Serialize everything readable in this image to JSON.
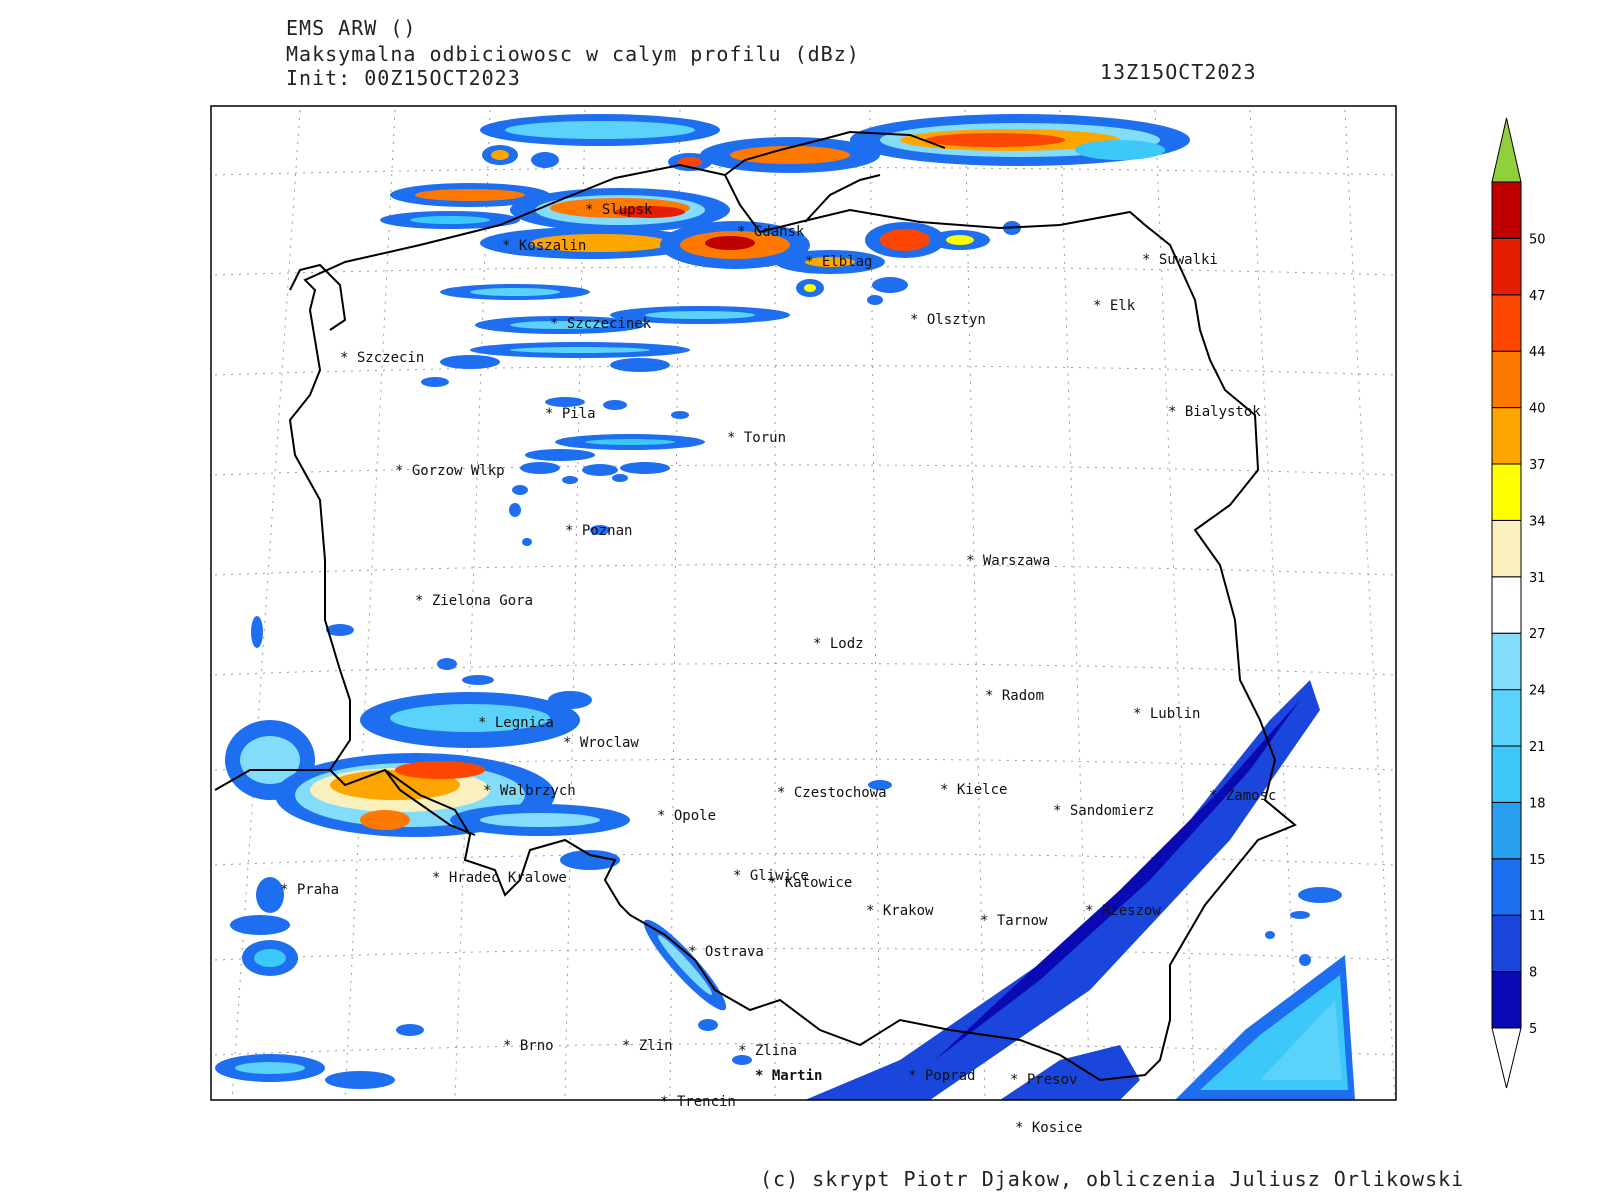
{
  "header": {
    "model": "EMS ARW ()",
    "field": "Maksymalna odbiciowosc w calym profilu (dBz)",
    "init": "Init: 00Z15OCT2023",
    "valid_time": "13Z15OCT2023"
  },
  "credit": "(c) skrypt Piotr Djakow, obliczenia Juliusz Orlikowski",
  "colorbar": {
    "levels": [
      "5",
      "8",
      "11",
      "15",
      "18",
      "21",
      "24",
      "27",
      "31",
      "34",
      "37",
      "40",
      "44",
      "47",
      "50"
    ],
    "colors": [
      "#0a0ab4",
      "#1a46dc",
      "#1e6ef0",
      "#28a0f0",
      "#3cc8f8",
      "#5ad2fa",
      "#82dcfa",
      "#ffffff",
      "#faf0be",
      "#ffff00",
      "#ffa500",
      "#ff7800",
      "#ff4600",
      "#e61e00",
      "#c00000"
    ],
    "over_color": "#8fd03c"
  },
  "cities": [
    {
      "name": "Slupsk"
    },
    {
      "name": "Gdansk"
    },
    {
      "name": "Koszalin"
    },
    {
      "name": "Elblag"
    },
    {
      "name": "Suwalki"
    },
    {
      "name": "Elk"
    },
    {
      "name": "Olsztyn"
    },
    {
      "name": "Szczecinek"
    },
    {
      "name": "Szczecin"
    },
    {
      "name": "Pila"
    },
    {
      "name": "Torun"
    },
    {
      "name": "Bialystok"
    },
    {
      "name": "Gorzow Wlkp"
    },
    {
      "name": "Poznan"
    },
    {
      "name": "Warszawa"
    },
    {
      "name": "Zielona Gora"
    },
    {
      "name": "Lodz"
    },
    {
      "name": "Radom"
    },
    {
      "name": "Lublin"
    },
    {
      "name": "Legnica"
    },
    {
      "name": "Wroclaw"
    },
    {
      "name": "Walbrzych"
    },
    {
      "name": "Czestochowa"
    },
    {
      "name": "Kielce"
    },
    {
      "name": "Zamosc"
    },
    {
      "name": "Sandomierz"
    },
    {
      "name": "Opole"
    },
    {
      "name": "Praha"
    },
    {
      "name": "Hradec Kralowe"
    },
    {
      "name": "Gliwice"
    },
    {
      "name": "Katowice"
    },
    {
      "name": "Krakow"
    },
    {
      "name": "Tarnow"
    },
    {
      "name": "Rzeszow"
    },
    {
      "name": "Ostrava"
    },
    {
      "name": "Brno"
    },
    {
      "name": "Zlin"
    },
    {
      "name": "Zlina"
    },
    {
      "name": "Martin"
    },
    {
      "name": "Poprad"
    },
    {
      "name": "Presov"
    },
    {
      "name": "Trencin"
    },
    {
      "name": "Kosice"
    }
  ]
}
